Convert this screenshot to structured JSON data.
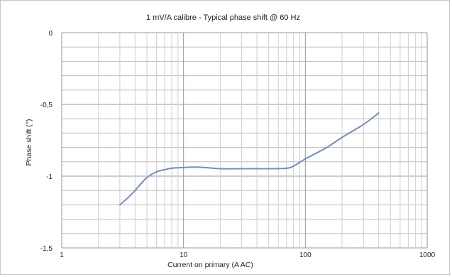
{
  "chart_data": {
    "type": "line",
    "title": "1 mV/A calibre - Typical phase shift @ 60 Hz",
    "xlabel": "Current on primary (A AC)",
    "ylabel": "Phase shift (°)",
    "x_scale": "log",
    "xlim": [
      1,
      1000
    ],
    "ylim": [
      -1.5,
      0
    ],
    "x_ticks": [
      "1",
      "10",
      "100",
      "1000"
    ],
    "y_ticks": [
      "0",
      "-0,5",
      "-1",
      "-1,5"
    ],
    "grid": true,
    "colors": {
      "series": "#6f8fc0"
    },
    "series": [
      {
        "x": [
          3,
          3.5,
          4,
          4.5,
          5,
          6,
          7,
          8,
          10,
          12,
          15,
          20,
          30,
          50,
          70,
          80,
          100,
          150,
          200,
          300,
          400
        ],
        "y": [
          -1.2,
          -1.15,
          -1.1,
          -1.05,
          -1.01,
          -0.97,
          -0.955,
          -0.945,
          -0.94,
          -0.937,
          -0.94,
          -0.948,
          -0.948,
          -0.948,
          -0.945,
          -0.93,
          -0.88,
          -0.8,
          -0.73,
          -0.64,
          -0.56
        ]
      }
    ]
  }
}
